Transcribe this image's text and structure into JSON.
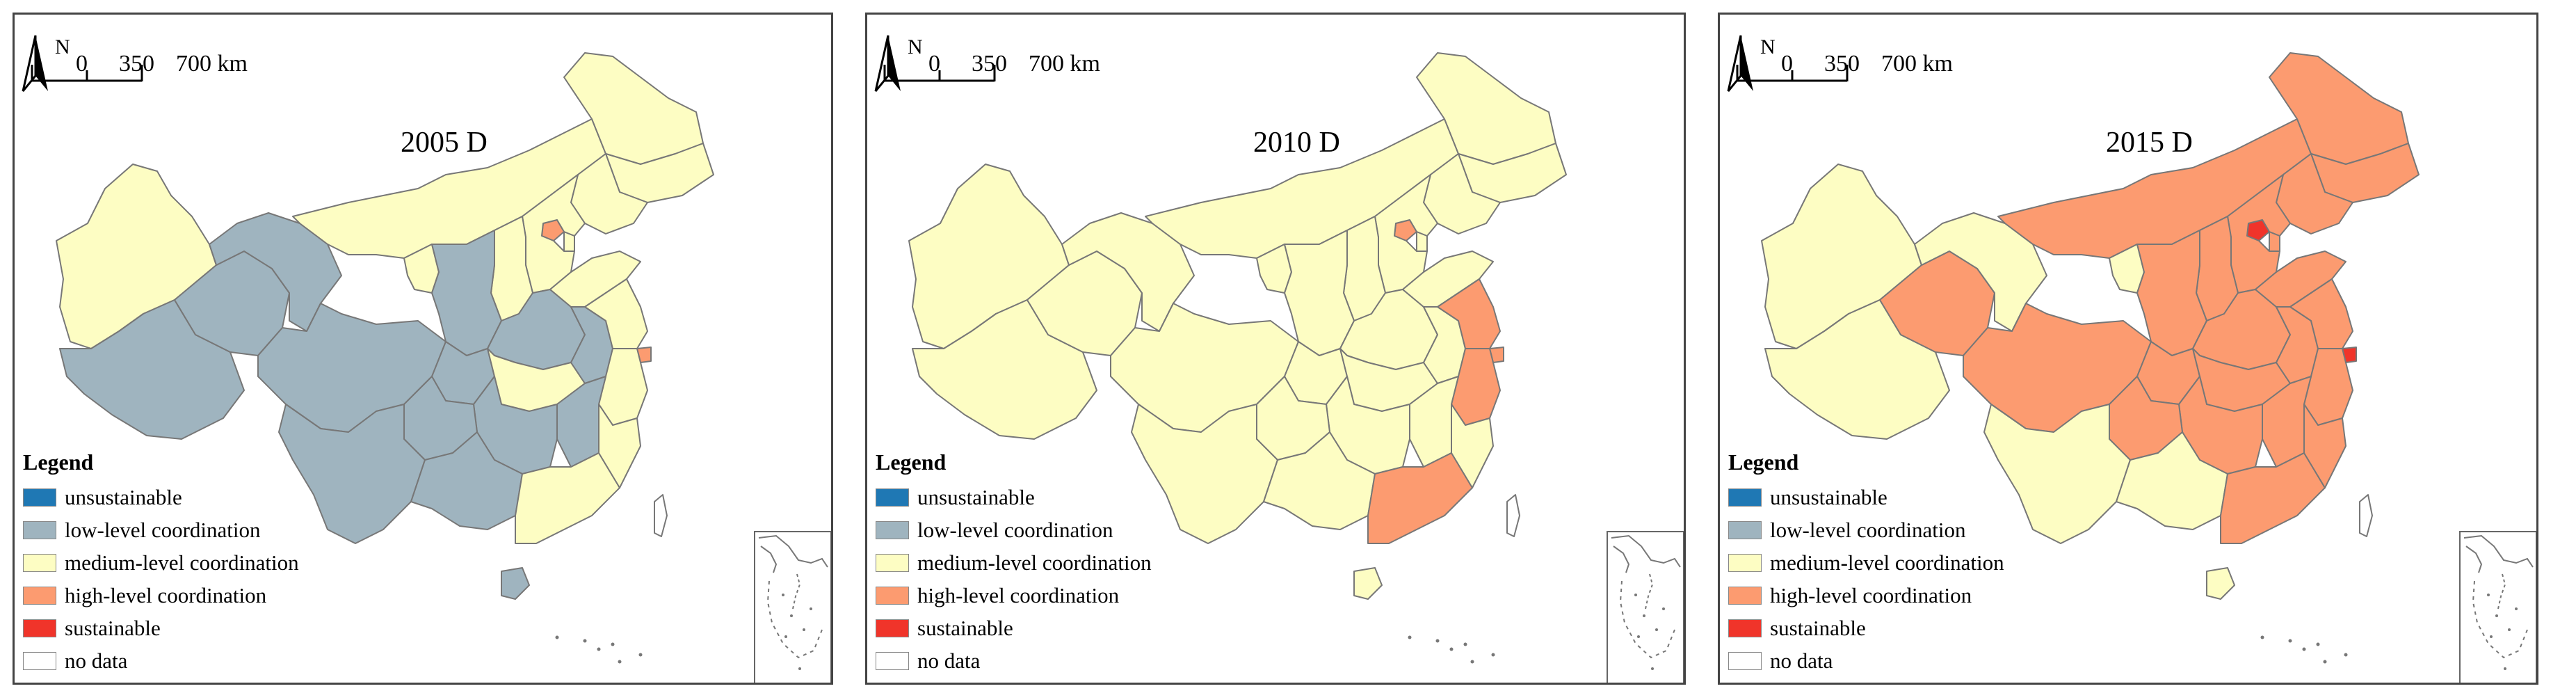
{
  "colors": {
    "unsustainable": "#1f78b4",
    "low": "#9fb4bf",
    "medium": "#fdfdc3",
    "high": "#fc9b70",
    "sustainable": "#f0342a",
    "nodata": "#ffffff",
    "border": "#777777"
  },
  "north_label": "N",
  "scale": {
    "zero": "0",
    "mid": "350",
    "end": "700 km"
  },
  "legend": {
    "title": "Legend",
    "items": [
      {
        "label": "unsustainable",
        "color": "#1f78b4"
      },
      {
        "label": "low-level coordination",
        "color": "#9fb4bf"
      },
      {
        "label": "medium-level coordination",
        "color": "#fdfdc3"
      },
      {
        "label": "high-level coordination",
        "color": "#fc9b70"
      },
      {
        "label": "sustainable",
        "color": "#f0342a"
      },
      {
        "label": "no data",
        "color": "#ffffff"
      }
    ]
  },
  "maps": [
    {
      "title": "2005 D",
      "regions": {
        "xinjiang": "medium",
        "tibet": "low",
        "qinghai": "low",
        "gansu": "low",
        "inner_mongolia": "medium",
        "heilongjiang": "medium",
        "jilin": "medium",
        "liaoning": "medium",
        "beijing": "high",
        "tianjin": "medium",
        "hebei": "medium",
        "shanxi": "medium",
        "shaanxi": "low",
        "ningxia": "medium",
        "henan": "low",
        "shandong": "medium",
        "sichuan": "low",
        "chongqing": "low",
        "hubei": "medium",
        "anhui": "low",
        "jiangsu": "medium",
        "shanghai": "high",
        "zhejiang": "medium",
        "jiangxi": "low",
        "hunan": "low",
        "guizhou": "low",
        "yunnan": "low",
        "guangxi": "low",
        "guangdong": "medium",
        "fujian": "medium",
        "hainan": "low",
        "taiwan": "nodata"
      }
    },
    {
      "title": "2010 D",
      "regions": {
        "xinjiang": "medium",
        "tibet": "medium",
        "qinghai": "medium",
        "gansu": "medium",
        "inner_mongolia": "medium",
        "heilongjiang": "medium",
        "jilin": "medium",
        "liaoning": "medium",
        "beijing": "high",
        "tianjin": "medium",
        "hebei": "medium",
        "shanxi": "medium",
        "shaanxi": "medium",
        "ningxia": "medium",
        "henan": "medium",
        "shandong": "medium",
        "sichuan": "medium",
        "chongqing": "medium",
        "hubei": "medium",
        "anhui": "medium",
        "jiangsu": "high",
        "shanghai": "high",
        "zhejiang": "high",
        "jiangxi": "medium",
        "hunan": "medium",
        "guizhou": "medium",
        "yunnan": "medium",
        "guangxi": "medium",
        "guangdong": "high",
        "fujian": "medium",
        "hainan": "medium",
        "taiwan": "nodata"
      }
    },
    {
      "title": "2015 D",
      "regions": {
        "xinjiang": "medium",
        "tibet": "medium",
        "qinghai": "high",
        "gansu": "medium",
        "inner_mongolia": "high",
        "heilongjiang": "high",
        "jilin": "high",
        "liaoning": "high",
        "beijing": "sustainable",
        "tianjin": "high",
        "hebei": "high",
        "shanxi": "high",
        "shaanxi": "high",
        "ningxia": "medium",
        "henan": "high",
        "shandong": "high",
        "sichuan": "high",
        "chongqing": "high",
        "hubei": "high",
        "anhui": "high",
        "jiangsu": "high",
        "shanghai": "sustainable",
        "zhejiang": "high",
        "jiangxi": "high",
        "hunan": "high",
        "guizhou": "high",
        "yunnan": "medium",
        "guangxi": "medium",
        "guangdong": "high",
        "fujian": "high",
        "hainan": "medium",
        "taiwan": "nodata"
      }
    }
  ]
}
